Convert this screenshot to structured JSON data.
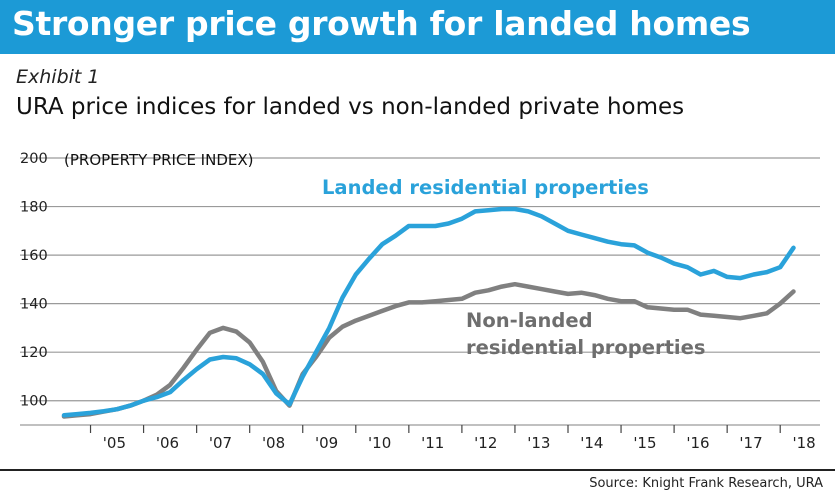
{
  "header": {
    "title": "Stronger price growth for landed homes",
    "exhibit": "Exhibit 1",
    "subtitle": "URA price indices for landed vs non-landed private homes"
  },
  "source": "Source: Knight Frank Research, URA",
  "colors": {
    "banner": "#1c9ad6",
    "landed": "#2aa2da",
    "non_landed": "#808080",
    "grid": "#9a9a9a"
  },
  "chart_data": {
    "type": "line",
    "ylabel": "(PROPERTY PRICE INDEX)",
    "ylim": [
      90,
      200
    ],
    "yticks": [
      100,
      120,
      140,
      160,
      180,
      200
    ],
    "xlim": [
      2004.5,
      2018.75
    ],
    "xtick_labels": [
      "'05",
      "'06",
      "'07",
      "'08",
      "'09",
      "'10",
      "'11",
      "'12",
      "'13",
      "'14",
      "'15",
      "'16",
      "'17",
      "'18"
    ],
    "grid": true,
    "series": [
      {
        "name": "Landed residential properties",
        "x": [
          2004.5,
          2004.75,
          2005.0,
          2005.25,
          2005.5,
          2005.75,
          2006.0,
          2006.25,
          2006.5,
          2006.75,
          2007.0,
          2007.25,
          2007.5,
          2007.75,
          2008.0,
          2008.25,
          2008.5,
          2008.75,
          2009.0,
          2009.25,
          2009.5,
          2009.75,
          2010.0,
          2010.25,
          2010.5,
          2010.75,
          2011.0,
          2011.25,
          2011.5,
          2011.75,
          2012.0,
          2012.25,
          2012.5,
          2012.75,
          2013.0,
          2013.25,
          2013.5,
          2013.75,
          2014.0,
          2014.25,
          2014.5,
          2014.75,
          2015.0,
          2015.25,
          2015.5,
          2015.75,
          2016.0,
          2016.25,
          2016.5,
          2016.75,
          2017.0,
          2017.25,
          2017.5,
          2017.75,
          2018.0,
          2018.25
        ],
        "values": [
          94,
          94.5,
          95,
          95.7,
          96.5,
          98,
          100,
          101.5,
          103.5,
          108.5,
          113,
          117,
          118,
          117.5,
          115,
          111,
          103,
          98.5,
          110,
          120,
          130,
          142.5,
          152,
          158.5,
          164.5,
          168,
          172,
          172,
          172,
          173,
          175,
          178,
          178.5,
          179,
          179,
          178,
          176,
          173,
          170,
          168.5,
          167,
          165.5,
          164.5,
          164,
          161,
          159,
          156.5,
          155,
          152,
          153.5,
          151,
          150.5,
          152,
          153,
          155,
          163
        ]
      },
      {
        "name": "Non-landed residential properties",
        "x": [
          2004.5,
          2004.75,
          2005.0,
          2005.25,
          2005.5,
          2005.75,
          2006.0,
          2006.25,
          2006.5,
          2006.75,
          2007.0,
          2007.25,
          2007.5,
          2007.75,
          2008.0,
          2008.25,
          2008.5,
          2008.75,
          2009.0,
          2009.25,
          2009.5,
          2009.75,
          2010.0,
          2010.25,
          2010.5,
          2010.75,
          2011.0,
          2011.25,
          2011.5,
          2011.75,
          2012.0,
          2012.25,
          2012.5,
          2012.75,
          2013.0,
          2013.25,
          2013.5,
          2013.75,
          2014.0,
          2014.25,
          2014.5,
          2014.75,
          2015.0,
          2015.25,
          2015.5,
          2015.75,
          2016.0,
          2016.25,
          2016.5,
          2016.75,
          2017.0,
          2017.25,
          2017.5,
          2017.75,
          2018.0,
          2018.25
        ],
        "values": [
          93.5,
          94,
          94.5,
          95.5,
          96.5,
          98,
          100,
          102.5,
          106.5,
          113.5,
          121,
          128,
          130,
          128.5,
          124,
          116,
          104,
          98,
          111,
          118,
          126,
          130.5,
          133,
          135,
          137,
          139,
          140.5,
          140.5,
          141,
          141.5,
          142,
          144.5,
          145.5,
          147,
          148,
          147,
          146,
          145,
          144,
          144.5,
          143.5,
          142,
          141,
          141,
          138.5,
          138,
          137.5,
          137.5,
          135.5,
          135,
          134.5,
          134,
          135,
          136,
          140,
          145
        ]
      }
    ],
    "annotations": [
      "Landed residential properties",
      "Non-landed",
      "residential properties"
    ]
  }
}
